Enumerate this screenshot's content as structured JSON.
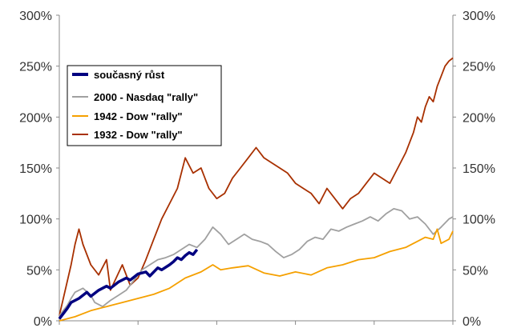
{
  "chart_data": {
    "type": "line",
    "ylim": [
      0,
      300
    ],
    "y_ticks": [
      "0%",
      "50%",
      "100%",
      "150%",
      "200%",
      "250%",
      "300%"
    ],
    "y_tick_values": [
      0,
      50,
      100,
      150,
      200,
      250,
      300
    ],
    "xlim": [
      0,
      100
    ],
    "x_tick_marks": [
      0,
      20,
      40,
      60,
      80,
      100
    ],
    "grid": false,
    "legend_position": "top-left",
    "series": [
      {
        "name": "současný růst",
        "color": "#000080",
        "line_weight": "bold",
        "points": [
          [
            0,
            2
          ],
          [
            2,
            12
          ],
          [
            3,
            18
          ],
          [
            5,
            22
          ],
          [
            7,
            28
          ],
          [
            8,
            24
          ],
          [
            10,
            30
          ],
          [
            12,
            34
          ],
          [
            13,
            32
          ],
          [
            15,
            38
          ],
          [
            17,
            42
          ],
          [
            18,
            40
          ],
          [
            20,
            46
          ],
          [
            22,
            48
          ],
          [
            23,
            44
          ],
          [
            25,
            52
          ],
          [
            26,
            50
          ],
          [
            28,
            55
          ],
          [
            29,
            58
          ],
          [
            30,
            62
          ],
          [
            31,
            60
          ],
          [
            32,
            64
          ],
          [
            33,
            67
          ],
          [
            34,
            65
          ],
          [
            35,
            70
          ]
        ]
      },
      {
        "name": "2000 - Nasdaq \"rally\"",
        "color": "#a0a0a0",
        "points": [
          [
            0,
            5
          ],
          [
            2,
            15
          ],
          [
            3,
            22
          ],
          [
            4,
            28
          ],
          [
            6,
            32
          ],
          [
            8,
            25
          ],
          [
            9,
            18
          ],
          [
            11,
            14
          ],
          [
            13,
            20
          ],
          [
            15,
            25
          ],
          [
            17,
            30
          ],
          [
            19,
            40
          ],
          [
            21,
            50
          ],
          [
            23,
            55
          ],
          [
            25,
            60
          ],
          [
            27,
            62
          ],
          [
            29,
            65
          ],
          [
            31,
            70
          ],
          [
            33,
            75
          ],
          [
            35,
            72
          ],
          [
            37,
            80
          ],
          [
            39,
            92
          ],
          [
            41,
            85
          ],
          [
            43,
            75
          ],
          [
            45,
            80
          ],
          [
            47,
            85
          ],
          [
            49,
            80
          ],
          [
            51,
            78
          ],
          [
            53,
            75
          ],
          [
            55,
            68
          ],
          [
            57,
            62
          ],
          [
            59,
            65
          ],
          [
            61,
            70
          ],
          [
            63,
            78
          ],
          [
            65,
            82
          ],
          [
            67,
            80
          ],
          [
            69,
            90
          ],
          [
            71,
            88
          ],
          [
            73,
            92
          ],
          [
            75,
            95
          ],
          [
            77,
            98
          ],
          [
            79,
            102
          ],
          [
            81,
            98
          ],
          [
            83,
            105
          ],
          [
            85,
            110
          ],
          [
            87,
            108
          ],
          [
            89,
            100
          ],
          [
            91,
            102
          ],
          [
            93,
            95
          ],
          [
            95,
            85
          ],
          [
            97,
            92
          ],
          [
            99,
            100
          ],
          [
            100,
            102
          ]
        ]
      },
      {
        "name": "1942 - Dow \"rally\"",
        "color": "#f5a000",
        "points": [
          [
            0,
            0
          ],
          [
            4,
            4
          ],
          [
            8,
            10
          ],
          [
            12,
            14
          ],
          [
            16,
            18
          ],
          [
            20,
            22
          ],
          [
            24,
            26
          ],
          [
            28,
            32
          ],
          [
            32,
            42
          ],
          [
            36,
            48
          ],
          [
            39,
            55
          ],
          [
            41,
            50
          ],
          [
            44,
            52
          ],
          [
            48,
            54
          ],
          [
            52,
            47
          ],
          [
            56,
            44
          ],
          [
            60,
            48
          ],
          [
            64,
            45
          ],
          [
            68,
            52
          ],
          [
            72,
            55
          ],
          [
            76,
            60
          ],
          [
            80,
            62
          ],
          [
            84,
            68
          ],
          [
            88,
            72
          ],
          [
            91,
            78
          ],
          [
            93,
            82
          ],
          [
            95,
            80
          ],
          [
            96,
            90
          ],
          [
            97,
            76
          ],
          [
            99,
            80
          ],
          [
            100,
            88
          ]
        ]
      },
      {
        "name": "1932 - Dow \"rally\"",
        "color": "#a83000",
        "points": [
          [
            0,
            5
          ],
          [
            3,
            55
          ],
          [
            4,
            75
          ],
          [
            5,
            90
          ],
          [
            6,
            75
          ],
          [
            8,
            55
          ],
          [
            10,
            45
          ],
          [
            12,
            60
          ],
          [
            13,
            30
          ],
          [
            16,
            55
          ],
          [
            18,
            35
          ],
          [
            20,
            42
          ],
          [
            22,
            60
          ],
          [
            24,
            80
          ],
          [
            26,
            100
          ],
          [
            28,
            115
          ],
          [
            30,
            130
          ],
          [
            32,
            160
          ],
          [
            34,
            145
          ],
          [
            36,
            150
          ],
          [
            38,
            130
          ],
          [
            40,
            120
          ],
          [
            42,
            125
          ],
          [
            44,
            140
          ],
          [
            46,
            150
          ],
          [
            48,
            160
          ],
          [
            50,
            170
          ],
          [
            52,
            160
          ],
          [
            54,
            155
          ],
          [
            56,
            150
          ],
          [
            58,
            145
          ],
          [
            60,
            135
          ],
          [
            62,
            130
          ],
          [
            64,
            125
          ],
          [
            66,
            115
          ],
          [
            68,
            130
          ],
          [
            70,
            120
          ],
          [
            72,
            110
          ],
          [
            74,
            120
          ],
          [
            76,
            125
          ],
          [
            78,
            135
          ],
          [
            80,
            145
          ],
          [
            82,
            140
          ],
          [
            84,
            135
          ],
          [
            86,
            150
          ],
          [
            88,
            165
          ],
          [
            90,
            185
          ],
          [
            91,
            200
          ],
          [
            92,
            195
          ],
          [
            93,
            210
          ],
          [
            94,
            220
          ],
          [
            95,
            215
          ],
          [
            96,
            230
          ],
          [
            97,
            240
          ],
          [
            98,
            250
          ],
          [
            99,
            255
          ],
          [
            100,
            258
          ]
        ]
      }
    ]
  }
}
